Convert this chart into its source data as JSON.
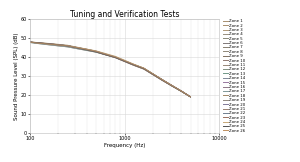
{
  "title": "Tuning and Verification Tests",
  "xlabel": "Frequency (Hz)",
  "ylabel": "Sound Pressure Level (SPL) (dB)",
  "xlim": [
    100,
    10000
  ],
  "ylim": [
    0,
    60
  ],
  "yticks": [
    0,
    10,
    20,
    30,
    40,
    50,
    60
  ],
  "frequencies": [
    100,
    125,
    160,
    200,
    250,
    315,
    400,
    500,
    630,
    800,
    1000,
    1250,
    1600,
    2000,
    2500,
    3150,
    4000,
    5000
  ],
  "nrc_base": [
    48,
    47.5,
    47,
    46.5,
    46,
    45,
    44,
    43,
    41.5,
    40,
    38,
    36,
    34,
    31,
    28,
    25,
    22,
    19
  ],
  "num_zones": 26,
  "zone_colors": [
    "#A89070",
    "#A89070",
    "#B09878",
    "#989080",
    "#888878",
    "#807878",
    "#888070",
    "#908878",
    "#807060",
    "#907870",
    "#988878",
    "#809080",
    "#709888",
    "#808898",
    "#9878A0",
    "#907888",
    "#809898",
    "#A08868",
    "#908880",
    "#807898",
    "#988070",
    "#708090",
    "#987060",
    "#C8A878",
    "#505050",
    "#C09060"
  ],
  "background_color": "#ffffff",
  "grid_color": "#d8d8d8",
  "title_fontsize": 5.5,
  "axis_label_fontsize": 4.0,
  "tick_fontsize": 3.5,
  "legend_fontsize": 2.8,
  "line_width": 0.45,
  "line_alpha": 0.9,
  "variation": 1.2
}
